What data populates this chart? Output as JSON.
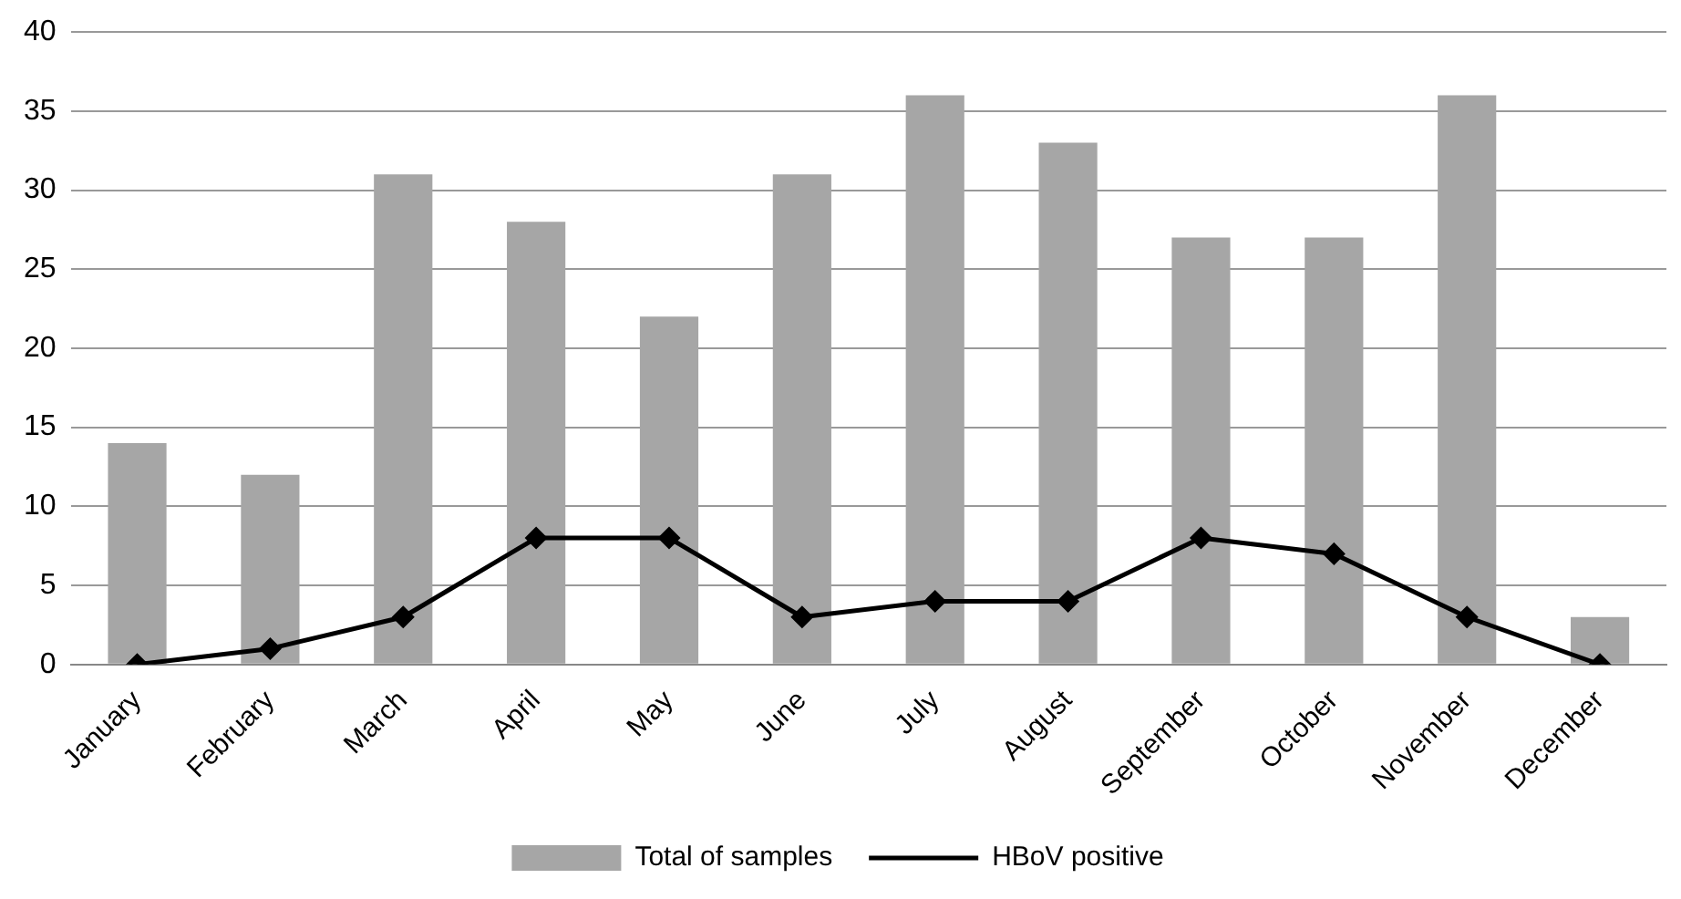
{
  "chart_data": {
    "type": "bar",
    "categories": [
      "January",
      "February",
      "March",
      "April",
      "May",
      "June",
      "July",
      "August",
      "September",
      "October",
      "November",
      "December"
    ],
    "series": [
      {
        "name": "Total of samples",
        "color": "#a6a6a6",
        "values": [
          14,
          12,
          31,
          28,
          22,
          31,
          36,
          33,
          27,
          27,
          36,
          3
        ]
      },
      {
        "name": "HBoV positive",
        "type": "line",
        "color": "#000000",
        "marker": "diamond",
        "line_style": "solid",
        "values": [
          0,
          1,
          3,
          8,
          8,
          3,
          4,
          4,
          8,
          7,
          3,
          0
        ]
      }
    ],
    "ylim": [
      0,
      40
    ],
    "yticks": [
      0,
      5,
      10,
      15,
      20,
      25,
      30,
      35,
      40
    ],
    "grid": "y",
    "legend": "bottom"
  }
}
